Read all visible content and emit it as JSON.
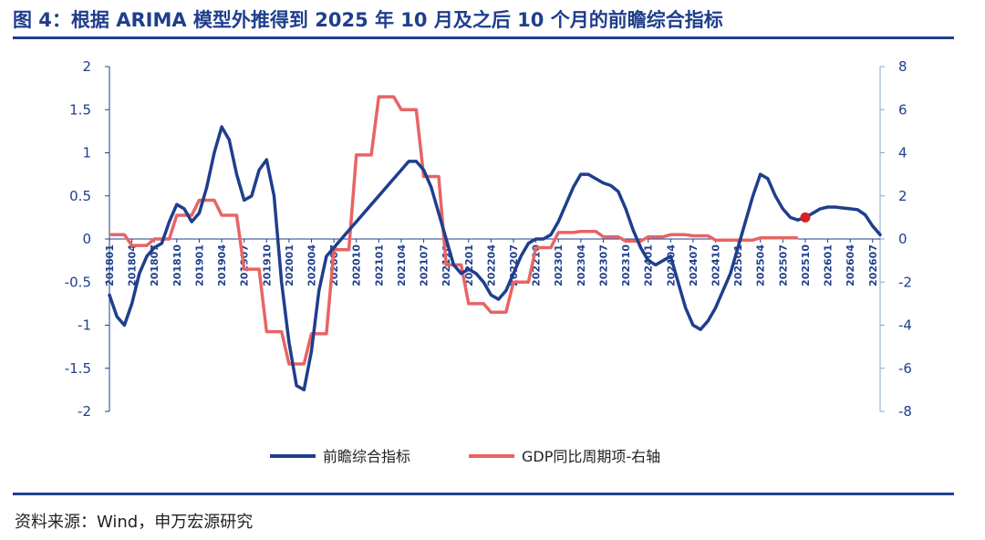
{
  "title": "图 4：根据 ARIMA 模型外推得到 2025 年 10 月及之后 10 个月的前瞻综合指标",
  "source": "资料来源：Wind，申万宏源研究",
  "chart_data": {
    "type": "line",
    "legend_position": "bottom",
    "grid": false,
    "left_axis": {
      "range": [
        -2,
        2
      ],
      "ticks": [
        "2",
        "1.5",
        "1",
        "0.5",
        "0",
        "-0.5",
        "-1",
        "-1.5",
        "-2"
      ]
    },
    "right_axis": {
      "range": [
        -8,
        8
      ],
      "ticks": [
        "8",
        "6",
        "4",
        "2",
        "0",
        "-2",
        "-4",
        "-6",
        "-8"
      ]
    },
    "x_ticks": [
      "2018-01",
      "2018-04",
      "2018-07",
      "2018-10",
      "2019-01",
      "2019-04",
      "2019-07",
      "2019-10",
      "2020-01",
      "2020-04",
      "2020-07",
      "2020-10",
      "2021-01",
      "2021-04",
      "2021-07",
      "2021-10",
      "2022-01",
      "2022-04",
      "2022-07",
      "2022-10",
      "2023-01",
      "2023-04",
      "2023-07",
      "2023-10",
      "2024-01",
      "2024-04",
      "2024-07",
      "2024-10",
      "2025-01",
      "2025-04",
      "2025-07",
      "2025-10",
      "2026-01",
      "2026-04",
      "2026-07"
    ],
    "series": [
      {
        "name": "前瞻综合指标",
        "axis": "left",
        "color": "#1f3e8c",
        "points": [
          [
            "2018-01",
            -0.65
          ],
          [
            "2018-02",
            -0.9
          ],
          [
            "2018-03",
            -1.0
          ],
          [
            "2018-04",
            -0.75
          ],
          [
            "2018-05",
            -0.4
          ],
          [
            "2018-06",
            -0.2
          ],
          [
            "2018-07",
            -0.1
          ],
          [
            "2018-08",
            -0.05
          ],
          [
            "2018-09",
            0.2
          ],
          [
            "2018-10",
            0.4
          ],
          [
            "2018-11",
            0.35
          ],
          [
            "2018-12",
            0.2
          ],
          [
            "2019-01",
            0.3
          ],
          [
            "2019-02",
            0.6
          ],
          [
            "2019-03",
            1.0
          ],
          [
            "2019-04",
            1.3
          ],
          [
            "2019-05",
            1.15
          ],
          [
            "2019-06",
            0.75
          ],
          [
            "2019-07",
            0.45
          ],
          [
            "2019-08",
            0.5
          ],
          [
            "2019-09",
            0.8
          ],
          [
            "2019-10",
            0.92
          ],
          [
            "2019-11",
            0.5
          ],
          [
            "2019-12",
            -0.5
          ],
          [
            "2020-01",
            -1.2
          ],
          [
            "2020-02",
            -1.7
          ],
          [
            "2020-03",
            -1.75
          ],
          [
            "2020-04",
            -1.3
          ],
          [
            "2020-05",
            -0.6
          ],
          [
            "2020-06",
            -0.2
          ],
          [
            "2020-07",
            -0.1
          ],
          [
            "2020-08",
            0.0
          ],
          [
            "2020-09",
            0.1
          ],
          [
            "2020-10",
            0.2
          ],
          [
            "2020-11",
            0.3
          ],
          [
            "2020-12",
            0.4
          ],
          [
            "2021-01",
            0.5
          ],
          [
            "2021-02",
            0.6
          ],
          [
            "2021-03",
            0.7
          ],
          [
            "2021-04",
            0.8
          ],
          [
            "2021-05",
            0.9
          ],
          [
            "2021-06",
            0.9
          ],
          [
            "2021-07",
            0.8
          ],
          [
            "2021-08",
            0.6
          ],
          [
            "2021-09",
            0.3
          ],
          [
            "2021-10",
            0.0
          ],
          [
            "2021-11",
            -0.3
          ],
          [
            "2021-12",
            -0.4
          ],
          [
            "2022-01",
            -0.35
          ],
          [
            "2022-02",
            -0.4
          ],
          [
            "2022-03",
            -0.5
          ],
          [
            "2022-04",
            -0.65
          ],
          [
            "2022-05",
            -0.7
          ],
          [
            "2022-06",
            -0.6
          ],
          [
            "2022-07",
            -0.4
          ],
          [
            "2022-08",
            -0.2
          ],
          [
            "2022-09",
            -0.05
          ],
          [
            "2022-10",
            0.0
          ],
          [
            "2022-11",
            0.0
          ],
          [
            "2022-12",
            0.05
          ],
          [
            "2023-01",
            0.2
          ],
          [
            "2023-02",
            0.4
          ],
          [
            "2023-03",
            0.6
          ],
          [
            "2023-04",
            0.75
          ],
          [
            "2023-05",
            0.75
          ],
          [
            "2023-06",
            0.7
          ],
          [
            "2023-07",
            0.65
          ],
          [
            "2023-08",
            0.62
          ],
          [
            "2023-09",
            0.55
          ],
          [
            "2023-10",
            0.35
          ],
          [
            "2023-11",
            0.1
          ],
          [
            "2023-12",
            -0.1
          ],
          [
            "2024-01",
            -0.25
          ],
          [
            "2024-02",
            -0.3
          ],
          [
            "2024-03",
            -0.25
          ],
          [
            "2024-04",
            -0.2
          ],
          [
            "2024-05",
            -0.5
          ],
          [
            "2024-06",
            -0.8
          ],
          [
            "2024-07",
            -1.0
          ],
          [
            "2024-08",
            -1.05
          ],
          [
            "2024-09",
            -0.95
          ],
          [
            "2024-10",
            -0.8
          ],
          [
            "2024-11",
            -0.6
          ],
          [
            "2024-12",
            -0.4
          ],
          [
            "2025-01",
            -0.1
          ],
          [
            "2025-02",
            0.2
          ],
          [
            "2025-03",
            0.5
          ],
          [
            "2025-04",
            0.75
          ],
          [
            "2025-05",
            0.7
          ],
          [
            "2025-06",
            0.5
          ],
          [
            "2025-07",
            0.35
          ],
          [
            "2025-08",
            0.25
          ],
          [
            "2025-09",
            0.22
          ],
          [
            "2025-10",
            0.25
          ],
          [
            "2025-11",
            0.3
          ],
          [
            "2025-12",
            0.35
          ],
          [
            "2026-01",
            0.37
          ],
          [
            "2026-02",
            0.37
          ],
          [
            "2026-03",
            0.36
          ],
          [
            "2026-04",
            0.35
          ],
          [
            "2026-05",
            0.34
          ],
          [
            "2026-06",
            0.28
          ],
          [
            "2026-07",
            0.15
          ],
          [
            "2026-08",
            0.05
          ]
        ],
        "highlight_point": [
          "2025-10",
          0.25
        ]
      },
      {
        "name": "GDP同比周期项-右轴",
        "axis": "right",
        "color": "#e86464",
        "points": [
          [
            "2018-01",
            0.2
          ],
          [
            "2018-02",
            0.2
          ],
          [
            "2018-03",
            0.2
          ],
          [
            "2018-04",
            -0.3
          ],
          [
            "2018-05",
            -0.3
          ],
          [
            "2018-06",
            -0.3
          ],
          [
            "2018-07",
            0.0
          ],
          [
            "2018-08",
            0.0
          ],
          [
            "2018-09",
            0.0
          ],
          [
            "2018-10",
            1.1
          ],
          [
            "2018-11",
            1.1
          ],
          [
            "2018-12",
            1.1
          ],
          [
            "2019-01",
            1.8
          ],
          [
            "2019-02",
            1.8
          ],
          [
            "2019-03",
            1.8
          ],
          [
            "2019-04",
            1.1
          ],
          [
            "2019-05",
            1.1
          ],
          [
            "2019-06",
            1.1
          ],
          [
            "2019-07",
            -1.4
          ],
          [
            "2019-08",
            -1.4
          ],
          [
            "2019-09",
            -1.4
          ],
          [
            "2019-10",
            -4.3
          ],
          [
            "2019-11",
            -4.3
          ],
          [
            "2019-12",
            -4.3
          ],
          [
            "2020-01",
            -5.8
          ],
          [
            "2020-02",
            -5.8
          ],
          [
            "2020-03",
            -5.8
          ],
          [
            "2020-04",
            -4.4
          ],
          [
            "2020-05",
            -4.4
          ],
          [
            "2020-06",
            -4.4
          ],
          [
            "2020-07",
            -0.5
          ],
          [
            "2020-08",
            -0.5
          ],
          [
            "2020-09",
            -0.5
          ],
          [
            "2020-10",
            3.9
          ],
          [
            "2020-11",
            3.9
          ],
          [
            "2020-12",
            3.9
          ],
          [
            "2021-01",
            6.6
          ],
          [
            "2021-02",
            6.6
          ],
          [
            "2021-03",
            6.6
          ],
          [
            "2021-04",
            6.0
          ],
          [
            "2021-05",
            6.0
          ],
          [
            "2021-06",
            6.0
          ],
          [
            "2021-07",
            2.9
          ],
          [
            "2021-08",
            2.9
          ],
          [
            "2021-09",
            2.9
          ],
          [
            "2021-10",
            -1.2
          ],
          [
            "2021-11",
            -1.2
          ],
          [
            "2021-12",
            -1.2
          ],
          [
            "2022-01",
            -3.0
          ],
          [
            "2022-02",
            -3.0
          ],
          [
            "2022-03",
            -3.0
          ],
          [
            "2022-04",
            -3.4
          ],
          [
            "2022-05",
            -3.4
          ],
          [
            "2022-06",
            -3.4
          ],
          [
            "2022-07",
            -2.0
          ],
          [
            "2022-08",
            -2.0
          ],
          [
            "2022-09",
            -2.0
          ],
          [
            "2022-10",
            -0.4
          ],
          [
            "2022-11",
            -0.4
          ],
          [
            "2022-12",
            -0.4
          ],
          [
            "2023-01",
            0.3
          ],
          [
            "2023-02",
            0.3
          ],
          [
            "2023-03",
            0.3
          ],
          [
            "2023-04",
            0.35
          ],
          [
            "2023-05",
            0.35
          ],
          [
            "2023-06",
            0.35
          ],
          [
            "2023-07",
            0.1
          ],
          [
            "2023-08",
            0.1
          ],
          [
            "2023-09",
            0.1
          ],
          [
            "2023-10",
            -0.1
          ],
          [
            "2023-11",
            -0.1
          ],
          [
            "2023-12",
            -0.1
          ],
          [
            "2024-01",
            0.1
          ],
          [
            "2024-02",
            0.1
          ],
          [
            "2024-03",
            0.1
          ],
          [
            "2024-04",
            0.2
          ],
          [
            "2024-05",
            0.2
          ],
          [
            "2024-06",
            0.2
          ],
          [
            "2024-07",
            0.15
          ],
          [
            "2024-08",
            0.15
          ],
          [
            "2024-09",
            0.15
          ],
          [
            "2024-10",
            -0.05
          ],
          [
            "2024-11",
            -0.05
          ],
          [
            "2024-12",
            -0.05
          ],
          [
            "2025-01",
            -0.05
          ],
          [
            "2025-02",
            -0.05
          ],
          [
            "2025-03",
            -0.05
          ],
          [
            "2025-04",
            0.05
          ],
          [
            "2025-05",
            0.05
          ],
          [
            "2025-06",
            0.05
          ],
          [
            "2025-07",
            0.05
          ],
          [
            "2025-08",
            0.05
          ],
          [
            "2025-09",
            0.05
          ]
        ]
      }
    ]
  }
}
